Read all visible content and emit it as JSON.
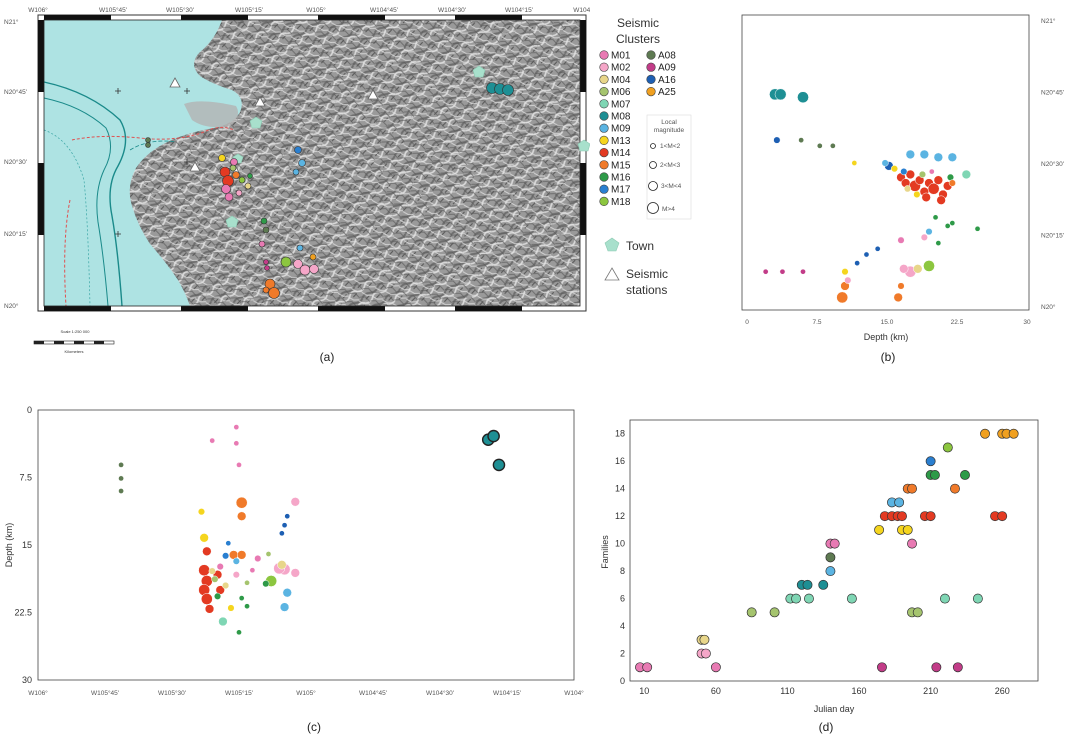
{
  "captions": [
    "(a)",
    "(b)",
    "(c)",
    "(d)"
  ],
  "colors": {
    "M01": "#e87ab3",
    "M02": "#f5a6c8",
    "M04": "#e8d68a",
    "M06": "#a5c46e",
    "M07": "#7fd6b4",
    "M08": "#1e8f94",
    "M09": "#5bb4e2",
    "M13": "#f5d51e",
    "M14": "#e33a22",
    "M15": "#f07a2a",
    "M16": "#2e9a48",
    "M17": "#2a7fd0",
    "M18": "#8cc63f",
    "A08": "#5e7a52",
    "A09": "#c23c88",
    "A16": "#1d5fb3",
    "A25": "#f0a020",
    "sea": "#aee3e3",
    "town": "#a8e0cc"
  },
  "panel_a": {
    "lon_ticks": [
      "W106°",
      "W105°45'",
      "W105°30'",
      "W105°15'",
      "W105°",
      "W104°45'",
      "W104°30'",
      "W104°15'",
      "W104°"
    ],
    "lat_ticks": [
      "N21°",
      "N20°45'",
      "N20°30'",
      "N20°15'",
      "N20°"
    ],
    "legend": {
      "title": "Seismic\nClusters",
      "col1": [
        "M01",
        "M02",
        "M04",
        "M06",
        "M07",
        "M08",
        "M09",
        "M13",
        "M14",
        "M15",
        "M16",
        "M17",
        "M18"
      ],
      "col2": [
        "A08",
        "A09",
        "A16",
        "A25"
      ],
      "magnitude_title": "Local\nmagnitude",
      "magnitudes": [
        "1<M<2",
        "2<M<3",
        "3<M<4",
        "M>4"
      ],
      "town": "Town",
      "stations": "Seismic\nstations"
    },
    "scale_text": "Scale 1:250 000",
    "scale_unit": "Kilometers"
  },
  "chart_data": [
    {
      "type": "scatter",
      "title": "",
      "xlabel": "Depth (km)",
      "ylabel": "",
      "xlim": [
        0,
        30
      ],
      "ylim": [
        20.0,
        21.0
      ],
      "x_ticks": [
        "0",
        "7.5",
        "15.0",
        "22.5",
        "30"
      ],
      "y_ticks": [
        "N21°",
        "N20°45'",
        "N20°30'",
        "N20°15'",
        "N20°"
      ],
      "points": [
        {
          "c": "M08",
          "x": 3.0,
          "y": 20.74,
          "m": 4
        },
        {
          "c": "M08",
          "x": 3.6,
          "y": 20.74,
          "m": 4
        },
        {
          "c": "M08",
          "x": 6.0,
          "y": 20.73,
          "m": 4
        },
        {
          "c": "A16",
          "x": 3.2,
          "y": 20.58,
          "m": 2
        },
        {
          "c": "A08",
          "x": 5.8,
          "y": 20.58,
          "m": 1
        },
        {
          "c": "A08",
          "x": 7.8,
          "y": 20.56,
          "m": 1
        },
        {
          "c": "A08",
          "x": 9.2,
          "y": 20.56,
          "m": 1
        },
        {
          "c": "M13",
          "x": 11.5,
          "y": 20.5,
          "m": 1
        },
        {
          "c": "A16",
          "x": 15.2,
          "y": 20.49,
          "m": 3
        },
        {
          "c": "M09",
          "x": 14.8,
          "y": 20.5,
          "m": 2
        },
        {
          "c": "M13",
          "x": 15.8,
          "y": 20.48,
          "m": 2
        },
        {
          "c": "M09",
          "x": 17.5,
          "y": 20.53,
          "m": 3
        },
        {
          "c": "M09",
          "x": 19.0,
          "y": 20.53,
          "m": 3
        },
        {
          "c": "M09",
          "x": 20.5,
          "y": 20.52,
          "m": 3
        },
        {
          "c": "M09",
          "x": 22.0,
          "y": 20.52,
          "m": 3
        },
        {
          "c": "M14",
          "x": 16.5,
          "y": 20.45,
          "m": 3
        },
        {
          "c": "M14",
          "x": 17.0,
          "y": 20.43,
          "m": 3
        },
        {
          "c": "M14",
          "x": 17.5,
          "y": 20.46,
          "m": 3
        },
        {
          "c": "M14",
          "x": 18.0,
          "y": 20.42,
          "m": 4
        },
        {
          "c": "M14",
          "x": 18.5,
          "y": 20.44,
          "m": 3
        },
        {
          "c": "M14",
          "x": 19.0,
          "y": 20.4,
          "m": 3
        },
        {
          "c": "M14",
          "x": 19.5,
          "y": 20.43,
          "m": 3
        },
        {
          "c": "M14",
          "x": 20.0,
          "y": 20.41,
          "m": 4
        },
        {
          "c": "M14",
          "x": 20.5,
          "y": 20.44,
          "m": 3
        },
        {
          "c": "M14",
          "x": 21.0,
          "y": 20.39,
          "m": 3
        },
        {
          "c": "M14",
          "x": 21.5,
          "y": 20.42,
          "m": 3
        },
        {
          "c": "M14",
          "x": 20.8,
          "y": 20.37,
          "m": 3
        },
        {
          "c": "M14",
          "x": 19.2,
          "y": 20.38,
          "m": 3
        },
        {
          "c": "M17",
          "x": 16.8,
          "y": 20.47,
          "m": 2
        },
        {
          "c": "M04",
          "x": 17.2,
          "y": 20.41,
          "m": 2
        },
        {
          "c": "M06",
          "x": 18.8,
          "y": 20.46,
          "m": 2
        },
        {
          "c": "M01",
          "x": 19.8,
          "y": 20.47,
          "m": 1
        },
        {
          "c": "M16",
          "x": 21.8,
          "y": 20.45,
          "m": 2
        },
        {
          "c": "M07",
          "x": 23.5,
          "y": 20.46,
          "m": 3
        },
        {
          "c": "M15",
          "x": 22.0,
          "y": 20.43,
          "m": 2
        },
        {
          "c": "M13",
          "x": 18.2,
          "y": 20.39,
          "m": 2
        },
        {
          "c": "M16",
          "x": 20.2,
          "y": 20.31,
          "m": 1
        },
        {
          "c": "M16",
          "x": 21.5,
          "y": 20.28,
          "m": 1
        },
        {
          "c": "M16",
          "x": 22.0,
          "y": 20.29,
          "m": 1
        },
        {
          "c": "M16",
          "x": 24.7,
          "y": 20.27,
          "m": 1
        },
        {
          "c": "M16",
          "x": 20.5,
          "y": 20.22,
          "m": 1
        },
        {
          "c": "M09",
          "x": 19.5,
          "y": 20.26,
          "m": 2
        },
        {
          "c": "M01",
          "x": 16.5,
          "y": 20.23,
          "m": 2
        },
        {
          "c": "M02",
          "x": 19.0,
          "y": 20.24,
          "m": 2
        },
        {
          "c": "A16",
          "x": 14.0,
          "y": 20.2,
          "m": 1
        },
        {
          "c": "A16",
          "x": 12.8,
          "y": 20.18,
          "m": 1
        },
        {
          "c": "A16",
          "x": 11.8,
          "y": 20.15,
          "m": 1
        },
        {
          "c": "M18",
          "x": 19.5,
          "y": 20.14,
          "m": 4
        },
        {
          "c": "M02",
          "x": 17.5,
          "y": 20.12,
          "m": 4
        },
        {
          "c": "M04",
          "x": 18.3,
          "y": 20.13,
          "m": 3
        },
        {
          "c": "M02",
          "x": 16.8,
          "y": 20.13,
          "m": 3
        },
        {
          "c": "M13",
          "x": 10.5,
          "y": 20.12,
          "m": 2
        },
        {
          "c": "M15",
          "x": 10.5,
          "y": 20.07,
          "m": 3
        },
        {
          "c": "M15",
          "x": 10.2,
          "y": 20.03,
          "m": 4
        },
        {
          "c": "M02",
          "x": 10.8,
          "y": 20.09,
          "m": 2
        },
        {
          "c": "M15",
          "x": 16.5,
          "y": 20.07,
          "m": 2
        },
        {
          "c": "M15",
          "x": 16.2,
          "y": 20.03,
          "m": 3
        },
        {
          "c": "A09",
          "x": 2.0,
          "y": 20.12,
          "m": 1
        },
        {
          "c": "A09",
          "x": 3.8,
          "y": 20.12,
          "m": 1
        },
        {
          "c": "A09",
          "x": 6.0,
          "y": 20.12,
          "m": 1
        }
      ]
    },
    {
      "type": "scatter",
      "title": "",
      "xlabel": "",
      "ylabel": "Depth (km)",
      "xlim": [
        -106.0,
        -104.0
      ],
      "ylim": [
        30,
        0
      ],
      "x_ticks": [
        "W106°",
        "W105°45'",
        "W105°30'",
        "W105°15'",
        "W105°",
        "W104°45'",
        "W104°30'",
        "W104°15'",
        "W104°"
      ],
      "y_ticks": [
        "0",
        "7.5",
        "15",
        "22.5",
        "30"
      ],
      "points": [
        {
          "c": "A08",
          "x": -105.69,
          "y": 6.1,
          "m": 1
        },
        {
          "c": "A08",
          "x": -105.69,
          "y": 7.6,
          "m": 1
        },
        {
          "c": "A08",
          "x": -105.69,
          "y": 9.0,
          "m": 1
        },
        {
          "c": "M08",
          "x": -104.32,
          "y": 3.3,
          "m": 4
        },
        {
          "c": "M08",
          "x": -104.3,
          "y": 2.9,
          "m": 4
        },
        {
          "c": "M08",
          "x": -104.28,
          "y": 6.1,
          "m": 4
        },
        {
          "c": "M01",
          "x": -105.35,
          "y": 3.4,
          "m": 1
        },
        {
          "c": "M01",
          "x": -105.26,
          "y": 1.9,
          "m": 1
        },
        {
          "c": "M01",
          "x": -105.26,
          "y": 3.7,
          "m": 1
        },
        {
          "c": "M01",
          "x": -105.25,
          "y": 6.1,
          "m": 1
        },
        {
          "c": "M15",
          "x": -105.24,
          "y": 10.3,
          "m": 4
        },
        {
          "c": "M15",
          "x": -105.24,
          "y": 11.8,
          "m": 3
        },
        {
          "c": "M02",
          "x": -105.04,
          "y": 10.2,
          "m": 3
        },
        {
          "c": "M13",
          "x": -105.39,
          "y": 11.3,
          "m": 2
        },
        {
          "c": "A16",
          "x": -105.07,
          "y": 11.8,
          "m": 1
        },
        {
          "c": "A16",
          "x": -105.08,
          "y": 12.8,
          "m": 1
        },
        {
          "c": "A16",
          "x": -105.09,
          "y": 13.7,
          "m": 1
        },
        {
          "c": "M13",
          "x": -105.38,
          "y": 14.2,
          "m": 3
        },
        {
          "c": "M14",
          "x": -105.37,
          "y": 15.7,
          "m": 3
        },
        {
          "c": "M17",
          "x": -105.29,
          "y": 14.8,
          "m": 1
        },
        {
          "c": "M15",
          "x": -105.27,
          "y": 16.1,
          "m": 3
        },
        {
          "c": "M15",
          "x": -105.24,
          "y": 16.1,
          "m": 3
        },
        {
          "c": "M02",
          "x": -105.08,
          "y": 17.7,
          "m": 4
        },
        {
          "c": "M02",
          "x": -105.04,
          "y": 18.1,
          "m": 3
        },
        {
          "c": "M14",
          "x": -105.38,
          "y": 17.8,
          "m": 4
        },
        {
          "c": "M14",
          "x": -105.37,
          "y": 19.0,
          "m": 4
        },
        {
          "c": "M14",
          "x": -105.38,
          "y": 20.0,
          "m": 4
        },
        {
          "c": "M14",
          "x": -105.37,
          "y": 21.0,
          "m": 4
        },
        {
          "c": "M14",
          "x": -105.36,
          "y": 22.1,
          "m": 3
        },
        {
          "c": "M14",
          "x": -105.33,
          "y": 18.3,
          "m": 3
        },
        {
          "c": "M14",
          "x": -105.32,
          "y": 20.0,
          "m": 3
        },
        {
          "c": "M01",
          "x": -105.32,
          "y": 17.4,
          "m": 2
        },
        {
          "c": "M04",
          "x": -105.35,
          "y": 17.9,
          "m": 2
        },
        {
          "c": "M06",
          "x": -105.34,
          "y": 18.8,
          "m": 2
        },
        {
          "c": "M17",
          "x": -105.3,
          "y": 16.2,
          "m": 2
        },
        {
          "c": "M16",
          "x": -105.33,
          "y": 20.7,
          "m": 2
        },
        {
          "c": "M04",
          "x": -105.3,
          "y": 19.5,
          "m": 2
        },
        {
          "c": "M02",
          "x": -105.26,
          "y": 18.3,
          "m": 2
        },
        {
          "c": "M06",
          "x": -105.22,
          "y": 19.2,
          "m": 1
        },
        {
          "c": "M01",
          "x": -105.2,
          "y": 17.8,
          "m": 1
        },
        {
          "c": "M16",
          "x": -105.24,
          "y": 20.9,
          "m": 1
        },
        {
          "c": "M16",
          "x": -105.22,
          "y": 21.8,
          "m": 1
        },
        {
          "c": "M16",
          "x": -105.25,
          "y": 24.7,
          "m": 1
        },
        {
          "c": "M07",
          "x": -105.31,
          "y": 23.5,
          "m": 3
        },
        {
          "c": "M13",
          "x": -105.28,
          "y": 22.0,
          "m": 2
        },
        {
          "c": "M09",
          "x": -105.07,
          "y": 20.3,
          "m": 3
        },
        {
          "c": "M09",
          "x": -105.08,
          "y": 21.9,
          "m": 3
        },
        {
          "c": "M18",
          "x": -105.13,
          "y": 19.0,
          "m": 4
        },
        {
          "c": "M02",
          "x": -105.1,
          "y": 17.6,
          "m": 4
        },
        {
          "c": "M04",
          "x": -105.09,
          "y": 17.2,
          "m": 3
        },
        {
          "c": "M16",
          "x": -105.15,
          "y": 19.3,
          "m": 2
        },
        {
          "c": "M06",
          "x": -105.14,
          "y": 16.0,
          "m": 1
        },
        {
          "c": "M09",
          "x": -105.26,
          "y": 16.8,
          "m": 2
        },
        {
          "c": "M01",
          "x": -105.18,
          "y": 16.5,
          "m": 2
        }
      ]
    },
    {
      "type": "scatter",
      "title": "",
      "xlabel": "Julian day",
      "ylabel": "Families",
      "xlim": [
        0,
        285
      ],
      "ylim": [
        0,
        19
      ],
      "x_ticks": [
        10,
        60,
        110,
        160,
        210,
        260
      ],
      "y_ticks": [
        0,
        2,
        4,
        6,
        8,
        10,
        12,
        14,
        16,
        18
      ],
      "points": [
        {
          "c": "M01",
          "x": 7,
          "y": 1
        },
        {
          "c": "M01",
          "x": 12,
          "y": 1
        },
        {
          "c": "M01",
          "x": 60,
          "y": 1
        },
        {
          "c": "M02",
          "x": 50,
          "y": 2
        },
        {
          "c": "M02",
          "x": 53,
          "y": 2
        },
        {
          "c": "M04",
          "x": 50,
          "y": 3
        },
        {
          "c": "M04",
          "x": 52,
          "y": 3
        },
        {
          "c": "M06",
          "x": 85,
          "y": 5
        },
        {
          "c": "M06",
          "x": 101,
          "y": 5
        },
        {
          "c": "M06",
          "x": 197,
          "y": 5
        },
        {
          "c": "M06",
          "x": 201,
          "y": 5
        },
        {
          "c": "M07",
          "x": 112,
          "y": 6
        },
        {
          "c": "M07",
          "x": 116,
          "y": 6
        },
        {
          "c": "M07",
          "x": 125,
          "y": 6
        },
        {
          "c": "M07",
          "x": 155,
          "y": 6
        },
        {
          "c": "M07",
          "x": 220,
          "y": 6
        },
        {
          "c": "M07",
          "x": 243,
          "y": 6
        },
        {
          "c": "M08",
          "x": 120,
          "y": 7
        },
        {
          "c": "M08",
          "x": 124,
          "y": 7
        },
        {
          "c": "M08",
          "x": 135,
          "y": 7
        },
        {
          "c": "M09",
          "x": 140,
          "y": 8
        },
        {
          "c": "A08",
          "x": 140,
          "y": 9
        },
        {
          "c": "M01",
          "x": 140,
          "y": 10
        },
        {
          "c": "M01",
          "x": 143,
          "y": 10
        },
        {
          "c": "M01",
          "x": 197,
          "y": 10
        },
        {
          "c": "M13",
          "x": 174,
          "y": 11
        },
        {
          "c": "M13",
          "x": 190,
          "y": 11
        },
        {
          "c": "M13",
          "x": 194,
          "y": 11
        },
        {
          "c": "M14",
          "x": 178,
          "y": 12
        },
        {
          "c": "M14",
          "x": 183,
          "y": 12
        },
        {
          "c": "M14",
          "x": 187,
          "y": 12
        },
        {
          "c": "M14",
          "x": 190,
          "y": 12
        },
        {
          "c": "M14",
          "x": 206,
          "y": 12
        },
        {
          "c": "M14",
          "x": 210,
          "y": 12
        },
        {
          "c": "M14",
          "x": 255,
          "y": 12
        },
        {
          "c": "M14",
          "x": 260,
          "y": 12
        },
        {
          "c": "M09",
          "x": 183,
          "y": 13
        },
        {
          "c": "M09",
          "x": 188,
          "y": 13
        },
        {
          "c": "M15",
          "x": 194,
          "y": 14
        },
        {
          "c": "M15",
          "x": 197,
          "y": 14
        },
        {
          "c": "M15",
          "x": 227,
          "y": 14
        },
        {
          "c": "M16",
          "x": 210,
          "y": 15
        },
        {
          "c": "M16",
          "x": 213,
          "y": 15
        },
        {
          "c": "M16",
          "x": 234,
          "y": 15
        },
        {
          "c": "M17",
          "x": 210,
          "y": 16
        },
        {
          "c": "M18",
          "x": 222,
          "y": 17
        },
        {
          "c": "A25",
          "x": 248,
          "y": 18
        },
        {
          "c": "A25",
          "x": 260,
          "y": 18
        },
        {
          "c": "A25",
          "x": 263,
          "y": 18
        },
        {
          "c": "A25",
          "x": 268,
          "y": 18
        },
        {
          "c": "A09",
          "x": 176,
          "y": 1
        },
        {
          "c": "A09",
          "x": 214,
          "y": 1
        },
        {
          "c": "A09",
          "x": 229,
          "y": 1
        }
      ]
    }
  ]
}
